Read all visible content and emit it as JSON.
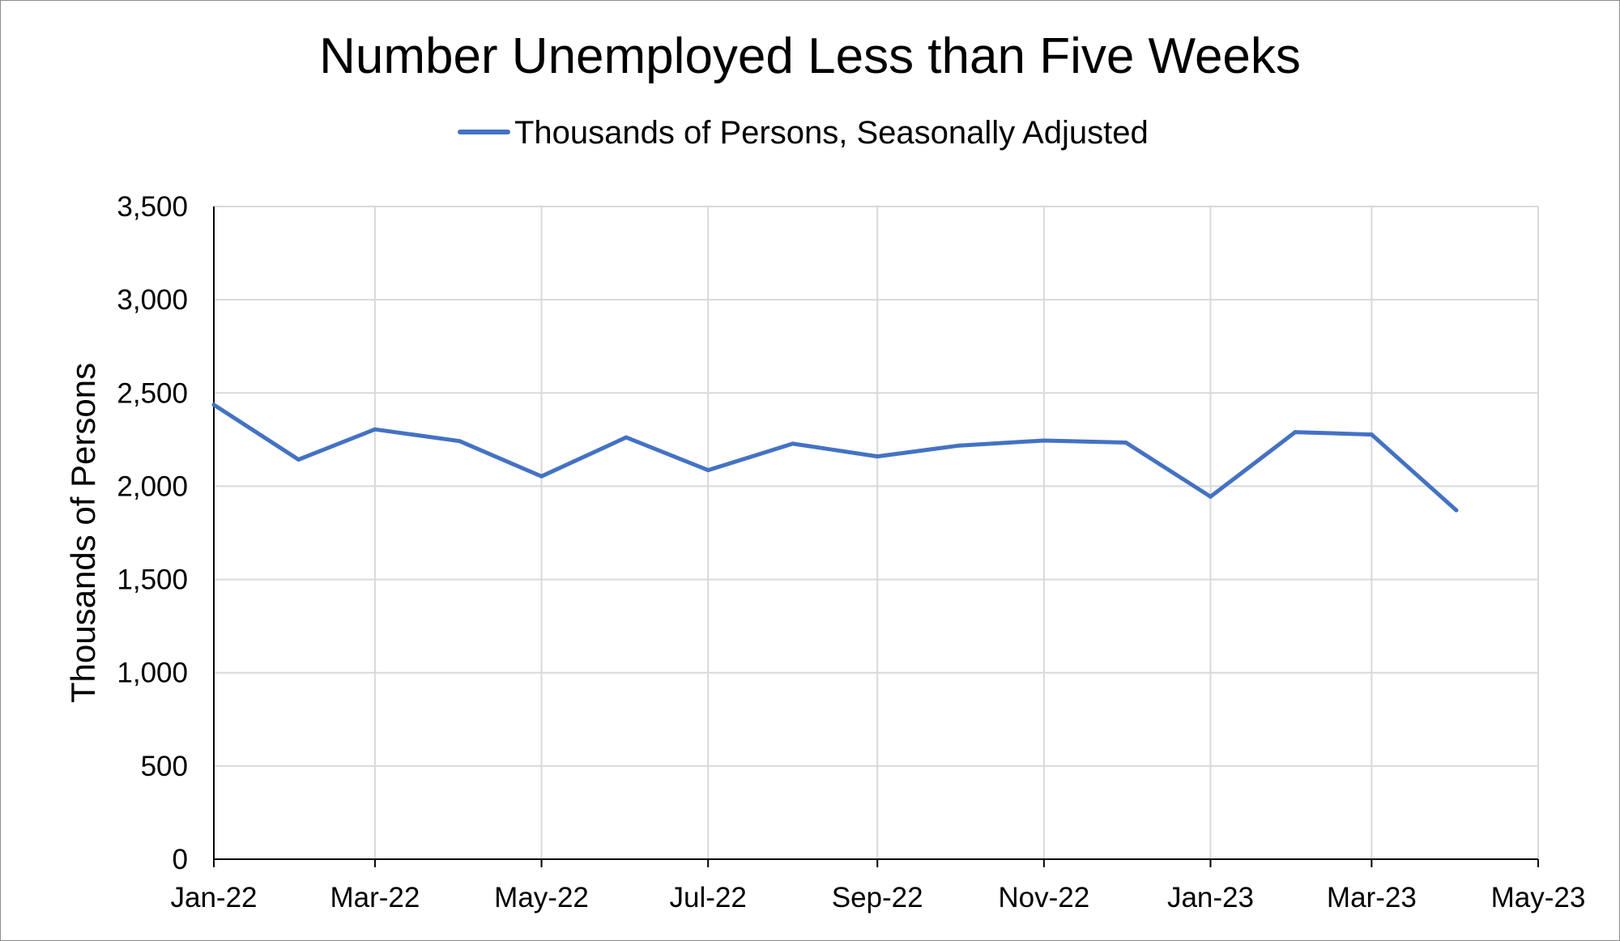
{
  "chart_data": {
    "type": "line",
    "title": "Number Unemployed Less than Five Weeks",
    "xlabel": "",
    "ylabel": "Thousands of Persons",
    "legend": {
      "position": "top"
    },
    "grid": true,
    "x_ticks": [
      "Jan-22",
      "Mar-22",
      "May-22",
      "Jul-22",
      "Sep-22",
      "Nov-22",
      "Jan-23",
      "Mar-23",
      "May-23"
    ],
    "xlim": [
      "2022-01-01",
      "2023-05-01"
    ],
    "ylim": [
      0,
      3500
    ],
    "y_ticks": [
      0,
      500,
      1000,
      1500,
      2000,
      2500,
      3000,
      3500
    ],
    "y_tick_labels": [
      "0",
      "500",
      "1,000",
      "1,500",
      "2,000",
      "2,500",
      "3,000",
      "3,500"
    ],
    "series": [
      {
        "name": "Thousands of Persons, Seasonally Adjusted",
        "color": "#4472c4",
        "x": [
          "2022-01-01",
          "2022-02-01",
          "2022-03-01",
          "2022-04-01",
          "2022-05-01",
          "2022-06-01",
          "2022-07-01",
          "2022-08-01",
          "2022-09-01",
          "2022-10-01",
          "2022-11-01",
          "2022-12-01",
          "2023-01-01",
          "2023-02-01",
          "2023-03-01",
          "2023-04-01"
        ],
        "values": [
          2437,
          2143,
          2305,
          2242,
          2053,
          2262,
          2086,
          2228,
          2160,
          2218,
          2245,
          2234,
          1944,
          2290,
          2277,
          1871
        ]
      }
    ]
  }
}
